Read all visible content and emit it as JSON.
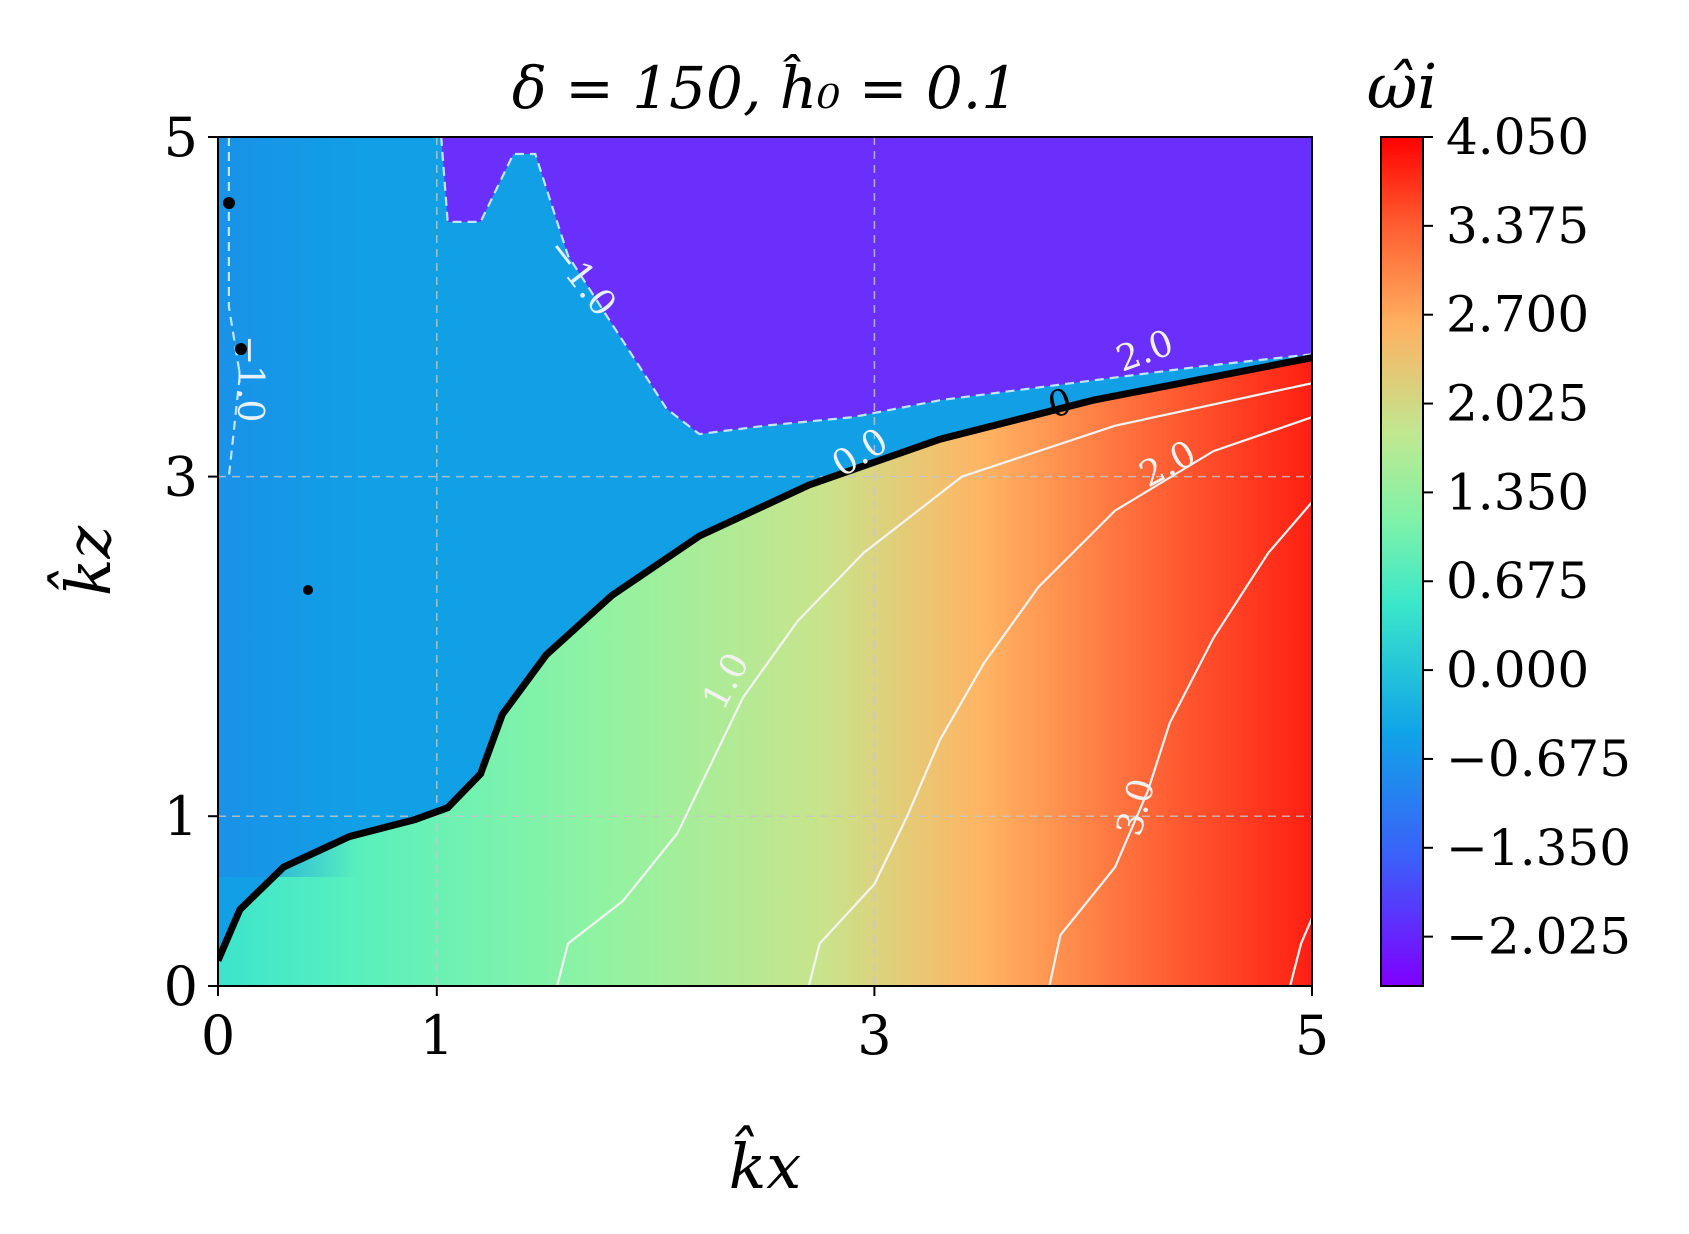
{
  "chart_data": {
    "type": "heatmap",
    "title": "δ = 150, ĥ₀ = 0.1",
    "xlabel": "k̂x",
    "ylabel": "k̂z",
    "xlim": [
      0,
      5
    ],
    "ylim": [
      0,
      5
    ],
    "x_ticks": [
      0,
      1,
      3,
      5
    ],
    "y_ticks": [
      0,
      1,
      3,
      5
    ],
    "x_tick_labels": [
      "0",
      "1",
      "3",
      "5"
    ],
    "y_tick_labels": [
      "0",
      "1",
      "3",
      "5"
    ],
    "grid": true,
    "colormap": "rainbow",
    "colorbar": {
      "label": "ω̂i",
      "range": [
        -2.4,
        4.05
      ],
      "ticks": [
        4.05,
        3.375,
        2.7,
        2.025,
        1.35,
        0.675,
        0.0,
        -0.675,
        -1.35,
        -2.025
      ],
      "tick_labels": [
        "4.050",
        "3.375",
        "2.700",
        "2.025",
        "1.350",
        "0.675",
        "0.000",
        "−0.675",
        "−1.350",
        "−2.025"
      ]
    },
    "neutral_curve": {
      "label": "0",
      "points": [
        [
          0.0,
          0.15
        ],
        [
          0.1,
          0.45
        ],
        [
          0.3,
          0.7
        ],
        [
          0.6,
          0.88
        ],
        [
          0.9,
          0.98
        ],
        [
          1.05,
          1.05
        ],
        [
          1.2,
          1.25
        ],
        [
          1.3,
          1.6
        ],
        [
          1.5,
          1.95
        ],
        [
          1.8,
          2.3
        ],
        [
          2.2,
          2.65
        ],
        [
          2.7,
          2.95
        ],
        [
          3.3,
          3.22
        ],
        [
          4.0,
          3.45
        ],
        [
          5.0,
          3.7
        ]
      ]
    },
    "contours": [
      {
        "level": 1.0,
        "label": "1.0",
        "points": [
          [
            1.55,
            0.0
          ],
          [
            1.6,
            0.25
          ],
          [
            1.85,
            0.5
          ],
          [
            2.1,
            0.9
          ],
          [
            2.25,
            1.3
          ],
          [
            2.4,
            1.7
          ],
          [
            2.65,
            2.15
          ],
          [
            2.95,
            2.55
          ],
          [
            3.4,
            3.0
          ],
          [
            4.1,
            3.3
          ],
          [
            5.0,
            3.55
          ]
        ]
      },
      {
        "level": 2.0,
        "label": "2.0",
        "points": [
          [
            2.7,
            0.0
          ],
          [
            2.75,
            0.25
          ],
          [
            3.0,
            0.6
          ],
          [
            3.15,
            1.0
          ],
          [
            3.3,
            1.45
          ],
          [
            3.5,
            1.9
          ],
          [
            3.75,
            2.35
          ],
          [
            4.1,
            2.8
          ],
          [
            4.55,
            3.15
          ],
          [
            5.0,
            3.35
          ]
        ]
      },
      {
        "level": 3.0,
        "label": "3.0",
        "points": [
          [
            3.8,
            0.0
          ],
          [
            3.85,
            0.3
          ],
          [
            4.1,
            0.7
          ],
          [
            4.25,
            1.15
          ],
          [
            4.35,
            1.55
          ],
          [
            4.55,
            2.05
          ],
          [
            4.8,
            2.55
          ],
          [
            5.0,
            2.85
          ]
        ]
      },
      {
        "level": 4.0,
        "label": "",
        "points": [
          [
            4.9,
            0.0
          ],
          [
            4.95,
            0.25
          ],
          [
            5.0,
            0.4
          ]
        ]
      },
      {
        "level": -1.0,
        "label": "−1.0",
        "dashed": true,
        "points": [
          [
            0.05,
            5.0
          ],
          [
            0.05,
            4.0
          ],
          [
            0.1,
            3.6
          ],
          [
            0.05,
            3.0
          ]
        ]
      },
      {
        "level": -1.0,
        "label": "−1.0",
        "dashed": true,
        "points": [
          [
            1.02,
            5.0
          ],
          [
            1.05,
            4.5
          ],
          [
            1.2,
            4.5
          ],
          [
            1.35,
            4.9
          ],
          [
            1.45,
            4.9
          ],
          [
            1.6,
            4.3
          ],
          [
            1.7,
            4.1
          ],
          [
            1.8,
            3.9
          ],
          [
            1.95,
            3.6
          ],
          [
            2.05,
            3.4
          ],
          [
            2.2,
            3.25
          ],
          [
            2.5,
            3.3
          ],
          [
            2.9,
            3.35
          ],
          [
            3.3,
            3.45
          ],
          [
            3.9,
            3.55
          ],
          [
            4.5,
            3.65
          ],
          [
            5.0,
            3.72
          ]
        ]
      }
    ],
    "contour_labels": [
      "−1.0",
      "−1.0",
      "0.0",
      "1.0",
      "2.0",
      "2.0",
      "3.0",
      "0"
    ]
  }
}
